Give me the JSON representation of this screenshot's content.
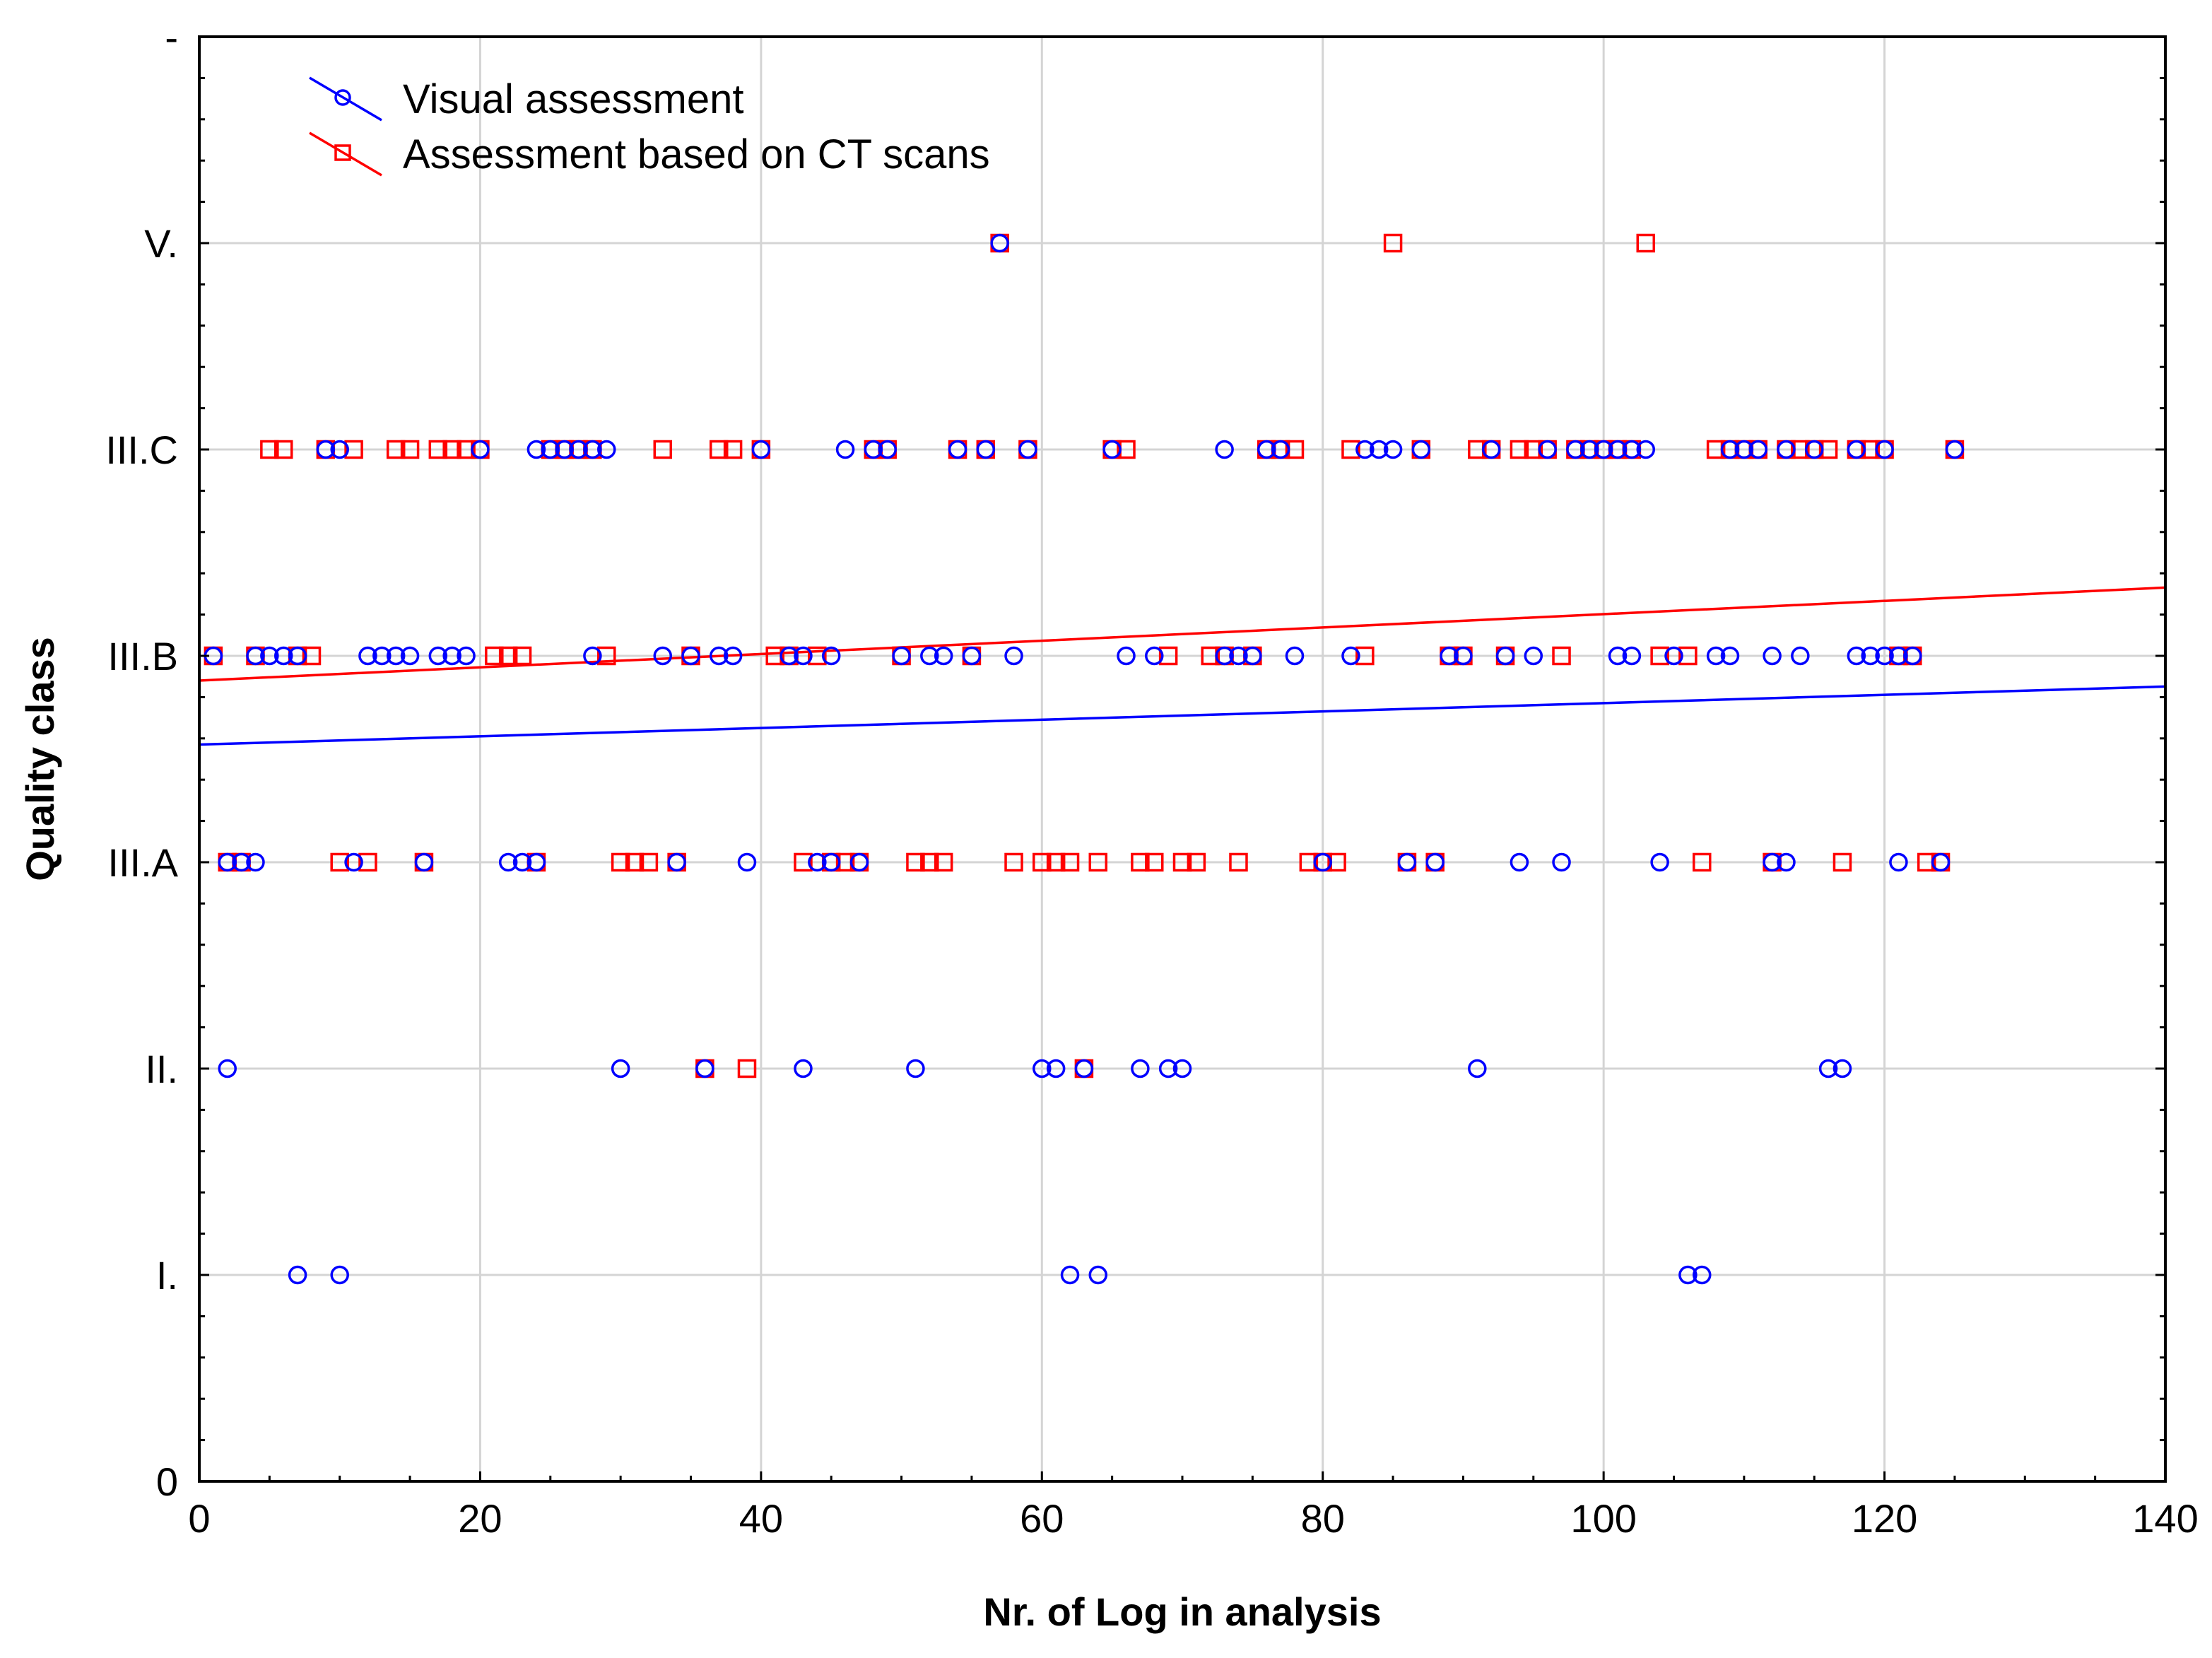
{
  "chart_data": {
    "type": "scatter",
    "title": "",
    "xlabel": "Nr. of Log in analysis",
    "ylabel": "Quality class",
    "xlim": [
      0,
      140
    ],
    "ylim": [
      0,
      7
    ],
    "x_ticks": [
      {
        "value": 0,
        "label": "0"
      },
      {
        "value": 20,
        "label": "20"
      },
      {
        "value": 40,
        "label": "40"
      },
      {
        "value": 60,
        "label": "60"
      },
      {
        "value": 80,
        "label": "80"
      },
      {
        "value": 100,
        "label": "100"
      },
      {
        "value": 120,
        "label": "120"
      },
      {
        "value": 140,
        "label": "140"
      }
    ],
    "y_ticks": [
      {
        "value": 0,
        "label": "0"
      },
      {
        "value": 1,
        "label": "I."
      },
      {
        "value": 2,
        "label": "II."
      },
      {
        "value": 3,
        "label": "III.A"
      },
      {
        "value": 4,
        "label": "III.B"
      },
      {
        "value": 5,
        "label": "III.C"
      },
      {
        "value": 6,
        "label": "V."
      },
      {
        "value": 7,
        "label": "-"
      }
    ],
    "grid": true,
    "legend_position": "top-left",
    "series": [
      {
        "name": "Visual assessment",
        "marker": "circle",
        "color": "#0000ff",
        "trend": {
          "intercept": 3.57,
          "slope": 0.00201
        },
        "points": {
          "1": [
            7,
            10,
            62,
            64,
            106,
            107
          ],
          "2": [
            2,
            30,
            36,
            43,
            51,
            60,
            61,
            63,
            67,
            69,
            70,
            91,
            116,
            117
          ],
          "3": [
            2,
            3,
            4,
            11,
            16,
            22,
            23,
            24,
            34,
            39,
            44,
            45,
            47,
            80,
            86,
            88,
            94,
            97,
            104,
            112,
            113,
            121,
            124
          ],
          "4": [
            1,
            4,
            5,
            6,
            7,
            12,
            13,
            14,
            15,
            17,
            18,
            19,
            28,
            33,
            35,
            37,
            38,
            42,
            43,
            45,
            50,
            52,
            53,
            55,
            58,
            66,
            68,
            73,
            74,
            75,
            78,
            82,
            89,
            90,
            93,
            95,
            101,
            102,
            105,
            108,
            109,
            112,
            114,
            118,
            119,
            120,
            121,
            122
          ],
          "5": [
            9,
            10,
            20,
            24,
            25,
            26,
            27,
            28,
            29,
            40,
            46,
            48,
            49,
            54,
            56,
            59,
            65,
            73,
            76,
            77,
            83,
            84,
            85,
            87,
            92,
            96,
            98,
            99,
            100,
            101,
            102,
            103,
            109,
            110,
            111,
            113,
            115,
            118,
            120,
            125
          ],
          "6": [
            57
          ]
        }
      },
      {
        "name": "Assessment based on CT scans",
        "marker": "square",
        "color": "#ff0000",
        "trend": {
          "intercept": 3.88,
          "slope": 0.00322
        },
        "points": {
          "2": [
            36,
            39,
            63
          ],
          "3": [
            2,
            3,
            10,
            12,
            16,
            24,
            30,
            31,
            32,
            34,
            43,
            45,
            46,
            47,
            51,
            52,
            53,
            58,
            60,
            61,
            62,
            64,
            67,
            68,
            70,
            71,
            74,
            79,
            80,
            81,
            86,
            88,
            107,
            112,
            117,
            123,
            124
          ],
          "4": [
            1,
            4,
            7,
            8,
            21,
            22,
            23,
            29,
            35,
            41,
            42,
            44,
            50,
            55,
            69,
            72,
            73,
            75,
            83,
            89,
            90,
            93,
            97,
            104,
            106,
            121,
            122
          ],
          "5": [
            5,
            6,
            9,
            11,
            14,
            15,
            17,
            18,
            19,
            20,
            25,
            26,
            27,
            28,
            33,
            37,
            38,
            40,
            48,
            49,
            54,
            56,
            59,
            65,
            66,
            76,
            77,
            78,
            82,
            87,
            91,
            92,
            94,
            95,
            96,
            98,
            99,
            100,
            101,
            102,
            108,
            109,
            110,
            111,
            113,
            114,
            115,
            116,
            118,
            119,
            120,
            125
          ],
          "6": [
            57,
            85,
            103
          ]
        }
      }
    ]
  }
}
